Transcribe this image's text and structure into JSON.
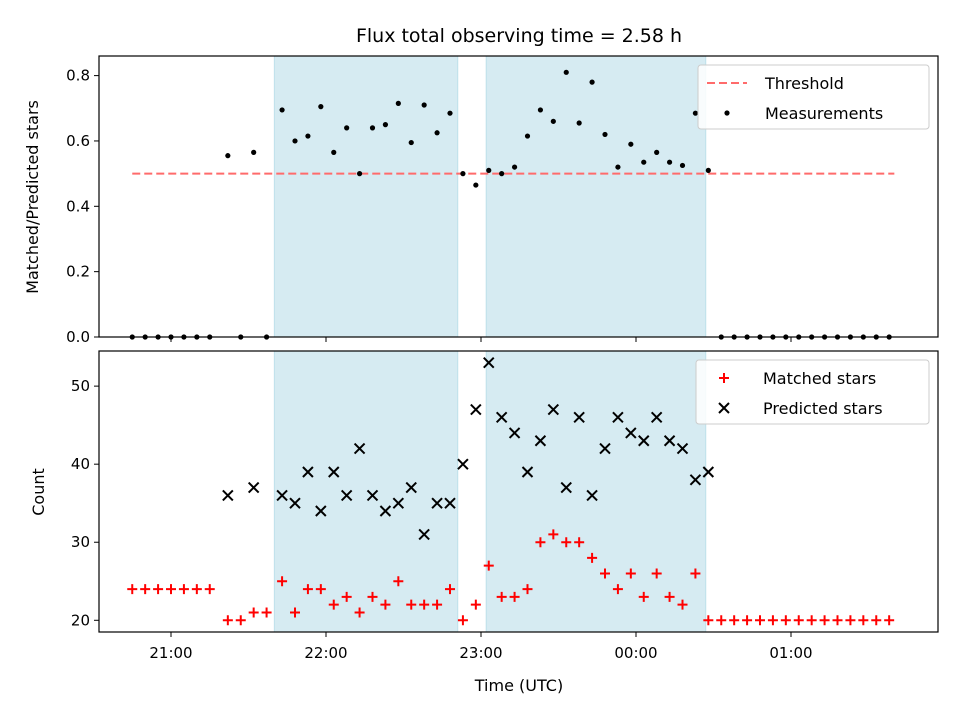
{
  "chart_data": [
    {
      "type": "scatter",
      "title": "Flux total observing time = 2.58 h",
      "xlabel": "",
      "ylabel": "Matched/Predicted stars",
      "ylim": [
        0,
        0.86
      ],
      "yticks": [
        0.0,
        0.2,
        0.4,
        0.6,
        0.8
      ],
      "ytick_labels": [
        "0.0",
        "0.2",
        "0.4",
        "0.6",
        "0.8"
      ],
      "legend_position": "top-right",
      "legend": [
        "Threshold",
        "Measurements"
      ],
      "shaded_intervals": [
        [
          "21:40",
          "22:51"
        ],
        [
          "23:02",
          "00:27"
        ]
      ],
      "threshold": {
        "name": "Threshold",
        "value": 0.5,
        "x_from": "20:45",
        "x_to": "01:40",
        "color": "#ff6b6b"
      },
      "series": [
        {
          "name": "Measurements",
          "color": "#000000",
          "x": [
            "20:45",
            "20:50",
            "20:55",
            "21:00",
            "21:05",
            "21:10",
            "21:15",
            "21:22",
            "21:27",
            "21:32",
            "21:37",
            "21:43",
            "21:48",
            "21:53",
            "21:58",
            "22:03",
            "22:08",
            "22:13",
            "22:18",
            "22:23",
            "22:28",
            "22:33",
            "22:38",
            "22:43",
            "22:48",
            "22:53",
            "22:58",
            "23:03",
            "23:08",
            "23:13",
            "23:18",
            "23:23",
            "23:28",
            "23:33",
            "23:38",
            "23:43",
            "23:48",
            "23:53",
            "23:58",
            "00:03",
            "00:08",
            "00:13",
            "00:18",
            "00:23",
            "00:28",
            "00:33",
            "00:38",
            "00:43",
            "00:48",
            "00:53",
            "00:58",
            "01:03",
            "01:08",
            "01:13",
            "01:18",
            "01:23",
            "01:28",
            "01:33",
            "01:38"
          ],
          "y": [
            0,
            0,
            0,
            0,
            0,
            0,
            0,
            0.555,
            0,
            0.565,
            0,
            0.695,
            0.6,
            0.615,
            0.705,
            0.565,
            0.64,
            0.5,
            0.64,
            0.65,
            0.715,
            0.595,
            0.71,
            0.625,
            0.685,
            0.5,
            0.465,
            0.51,
            0.5,
            0.52,
            0.615,
            0.695,
            0.66,
            0.81,
            0.655,
            0.78,
            0.62,
            0.52,
            0.59,
            0.535,
            0.565,
            0.535,
            0.525,
            0.685,
            0.51,
            0,
            0,
            0,
            0,
            0,
            0,
            0,
            0,
            0,
            0,
            0,
            0,
            0,
            0
          ]
        }
      ]
    },
    {
      "type": "scatter",
      "title": "",
      "xlabel": "Time (UTC)",
      "ylabel": "Count",
      "ylim": [
        18.5,
        54.5
      ],
      "yticks": [
        20,
        30,
        40,
        50
      ],
      "ytick_labels": [
        "20",
        "30",
        "40",
        "50"
      ],
      "xticks": [
        "21:00",
        "22:00",
        "23:00",
        "00:00",
        "01:00"
      ],
      "legend_position": "top-right",
      "legend": [
        "Matched stars",
        "Predicted stars"
      ],
      "shaded_intervals": [
        [
          "21:40",
          "22:51"
        ],
        [
          "23:02",
          "00:27"
        ]
      ],
      "series": [
        {
          "name": "Matched stars",
          "color": "#ff0000",
          "marker": "plus",
          "x": [
            "20:45",
            "20:50",
            "20:55",
            "21:00",
            "21:05",
            "21:10",
            "21:15",
            "21:22",
            "21:27",
            "21:32",
            "21:37",
            "21:43",
            "21:48",
            "21:53",
            "21:58",
            "22:03",
            "22:08",
            "22:13",
            "22:18",
            "22:23",
            "22:28",
            "22:33",
            "22:38",
            "22:43",
            "22:48",
            "22:53",
            "22:58",
            "23:03",
            "23:08",
            "23:13",
            "23:18",
            "23:23",
            "23:28",
            "23:33",
            "23:38",
            "23:43",
            "23:48",
            "23:53",
            "23:58",
            "00:03",
            "00:08",
            "00:13",
            "00:18",
            "00:23",
            "00:28",
            "00:33",
            "00:38",
            "00:43",
            "00:48",
            "00:53",
            "00:58",
            "01:03",
            "01:08",
            "01:13",
            "01:18",
            "01:23",
            "01:28",
            "01:33",
            "01:38"
          ],
          "y": [
            24,
            24,
            24,
            24,
            24,
            24,
            24,
            20,
            20,
            21,
            21,
            25,
            21,
            24,
            24,
            22,
            23,
            21,
            23,
            22,
            25,
            22,
            22,
            22,
            24,
            20,
            22,
            27,
            23,
            23,
            24,
            30,
            31,
            30,
            30,
            28,
            26,
            24,
            26,
            23,
            26,
            23,
            22,
            26,
            20,
            20,
            20,
            20,
            20,
            20,
            20,
            20,
            20,
            20,
            20,
            20,
            20,
            20,
            20
          ]
        },
        {
          "name": "Predicted stars",
          "color": "#000000",
          "marker": "x",
          "x": [
            "21:22",
            "21:32",
            "21:43",
            "21:48",
            "21:53",
            "21:58",
            "22:03",
            "22:08",
            "22:13",
            "22:18",
            "22:23",
            "22:28",
            "22:33",
            "22:38",
            "22:43",
            "22:48",
            "22:53",
            "22:58",
            "23:03",
            "23:08",
            "23:13",
            "23:18",
            "23:23",
            "23:28",
            "23:33",
            "23:38",
            "23:43",
            "23:48",
            "23:53",
            "23:58",
            "00:03",
            "00:08",
            "00:13",
            "00:18",
            "00:23",
            "00:28"
          ],
          "y": [
            36,
            37,
            36,
            35,
            39,
            34,
            39,
            36,
            42,
            36,
            34,
            35,
            37,
            31,
            35,
            35,
            40,
            47,
            53,
            46,
            44,
            39,
            43,
            47,
            37,
            46,
            36,
            42,
            46,
            44,
            43,
            46,
            43,
            42,
            38,
            39
          ]
        }
      ]
    }
  ]
}
